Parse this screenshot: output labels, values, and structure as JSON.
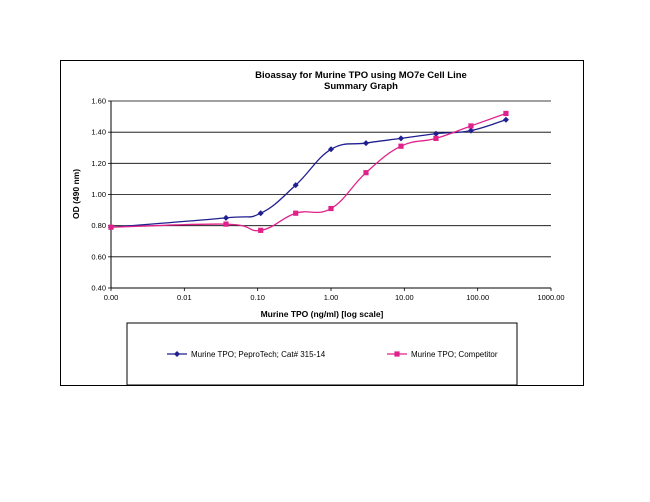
{
  "chart_data": {
    "type": "line",
    "title": "Bioassay for Murine TPO using MO7e Cell Line",
    "subtitle": "Summary Graph",
    "xlabel": "Murine TPO (ng/ml) [log scale]",
    "ylabel": "OD (490 nm)",
    "x_scale": "log",
    "x_tick_labels": [
      "0.00",
      "0.01",
      "0.10",
      "1.00",
      "10.00",
      "100.00",
      "1000.00"
    ],
    "y_tick_labels": [
      "0.40",
      "0.60",
      "0.80",
      "1.00",
      "1.20",
      "1.40",
      "1.60"
    ],
    "ylim": [
      0.4,
      1.6
    ],
    "grid": true,
    "legend_position": "bottom",
    "series": [
      {
        "name": "Murine TPO; PeproTech; Cat# 315-14",
        "color": "#1f1f8f",
        "marker": "diamond",
        "x": [
          0.001,
          0.037,
          0.11,
          0.33,
          1.0,
          3.0,
          9.0,
          27.0,
          81.0,
          243.0
        ],
        "y": [
          0.79,
          0.85,
          0.88,
          1.06,
          1.29,
          1.33,
          1.36,
          1.39,
          1.41,
          1.48
        ]
      },
      {
        "name": "Murine TPO; Competitor",
        "color": "#e0218a",
        "marker": "square",
        "x": [
          0.001,
          0.037,
          0.11,
          0.33,
          1.0,
          3.0,
          9.0,
          27.0,
          81.0,
          243.0
        ],
        "y": [
          0.79,
          0.81,
          0.77,
          0.88,
          0.91,
          1.14,
          1.31,
          1.36,
          1.44,
          1.52
        ]
      }
    ]
  }
}
